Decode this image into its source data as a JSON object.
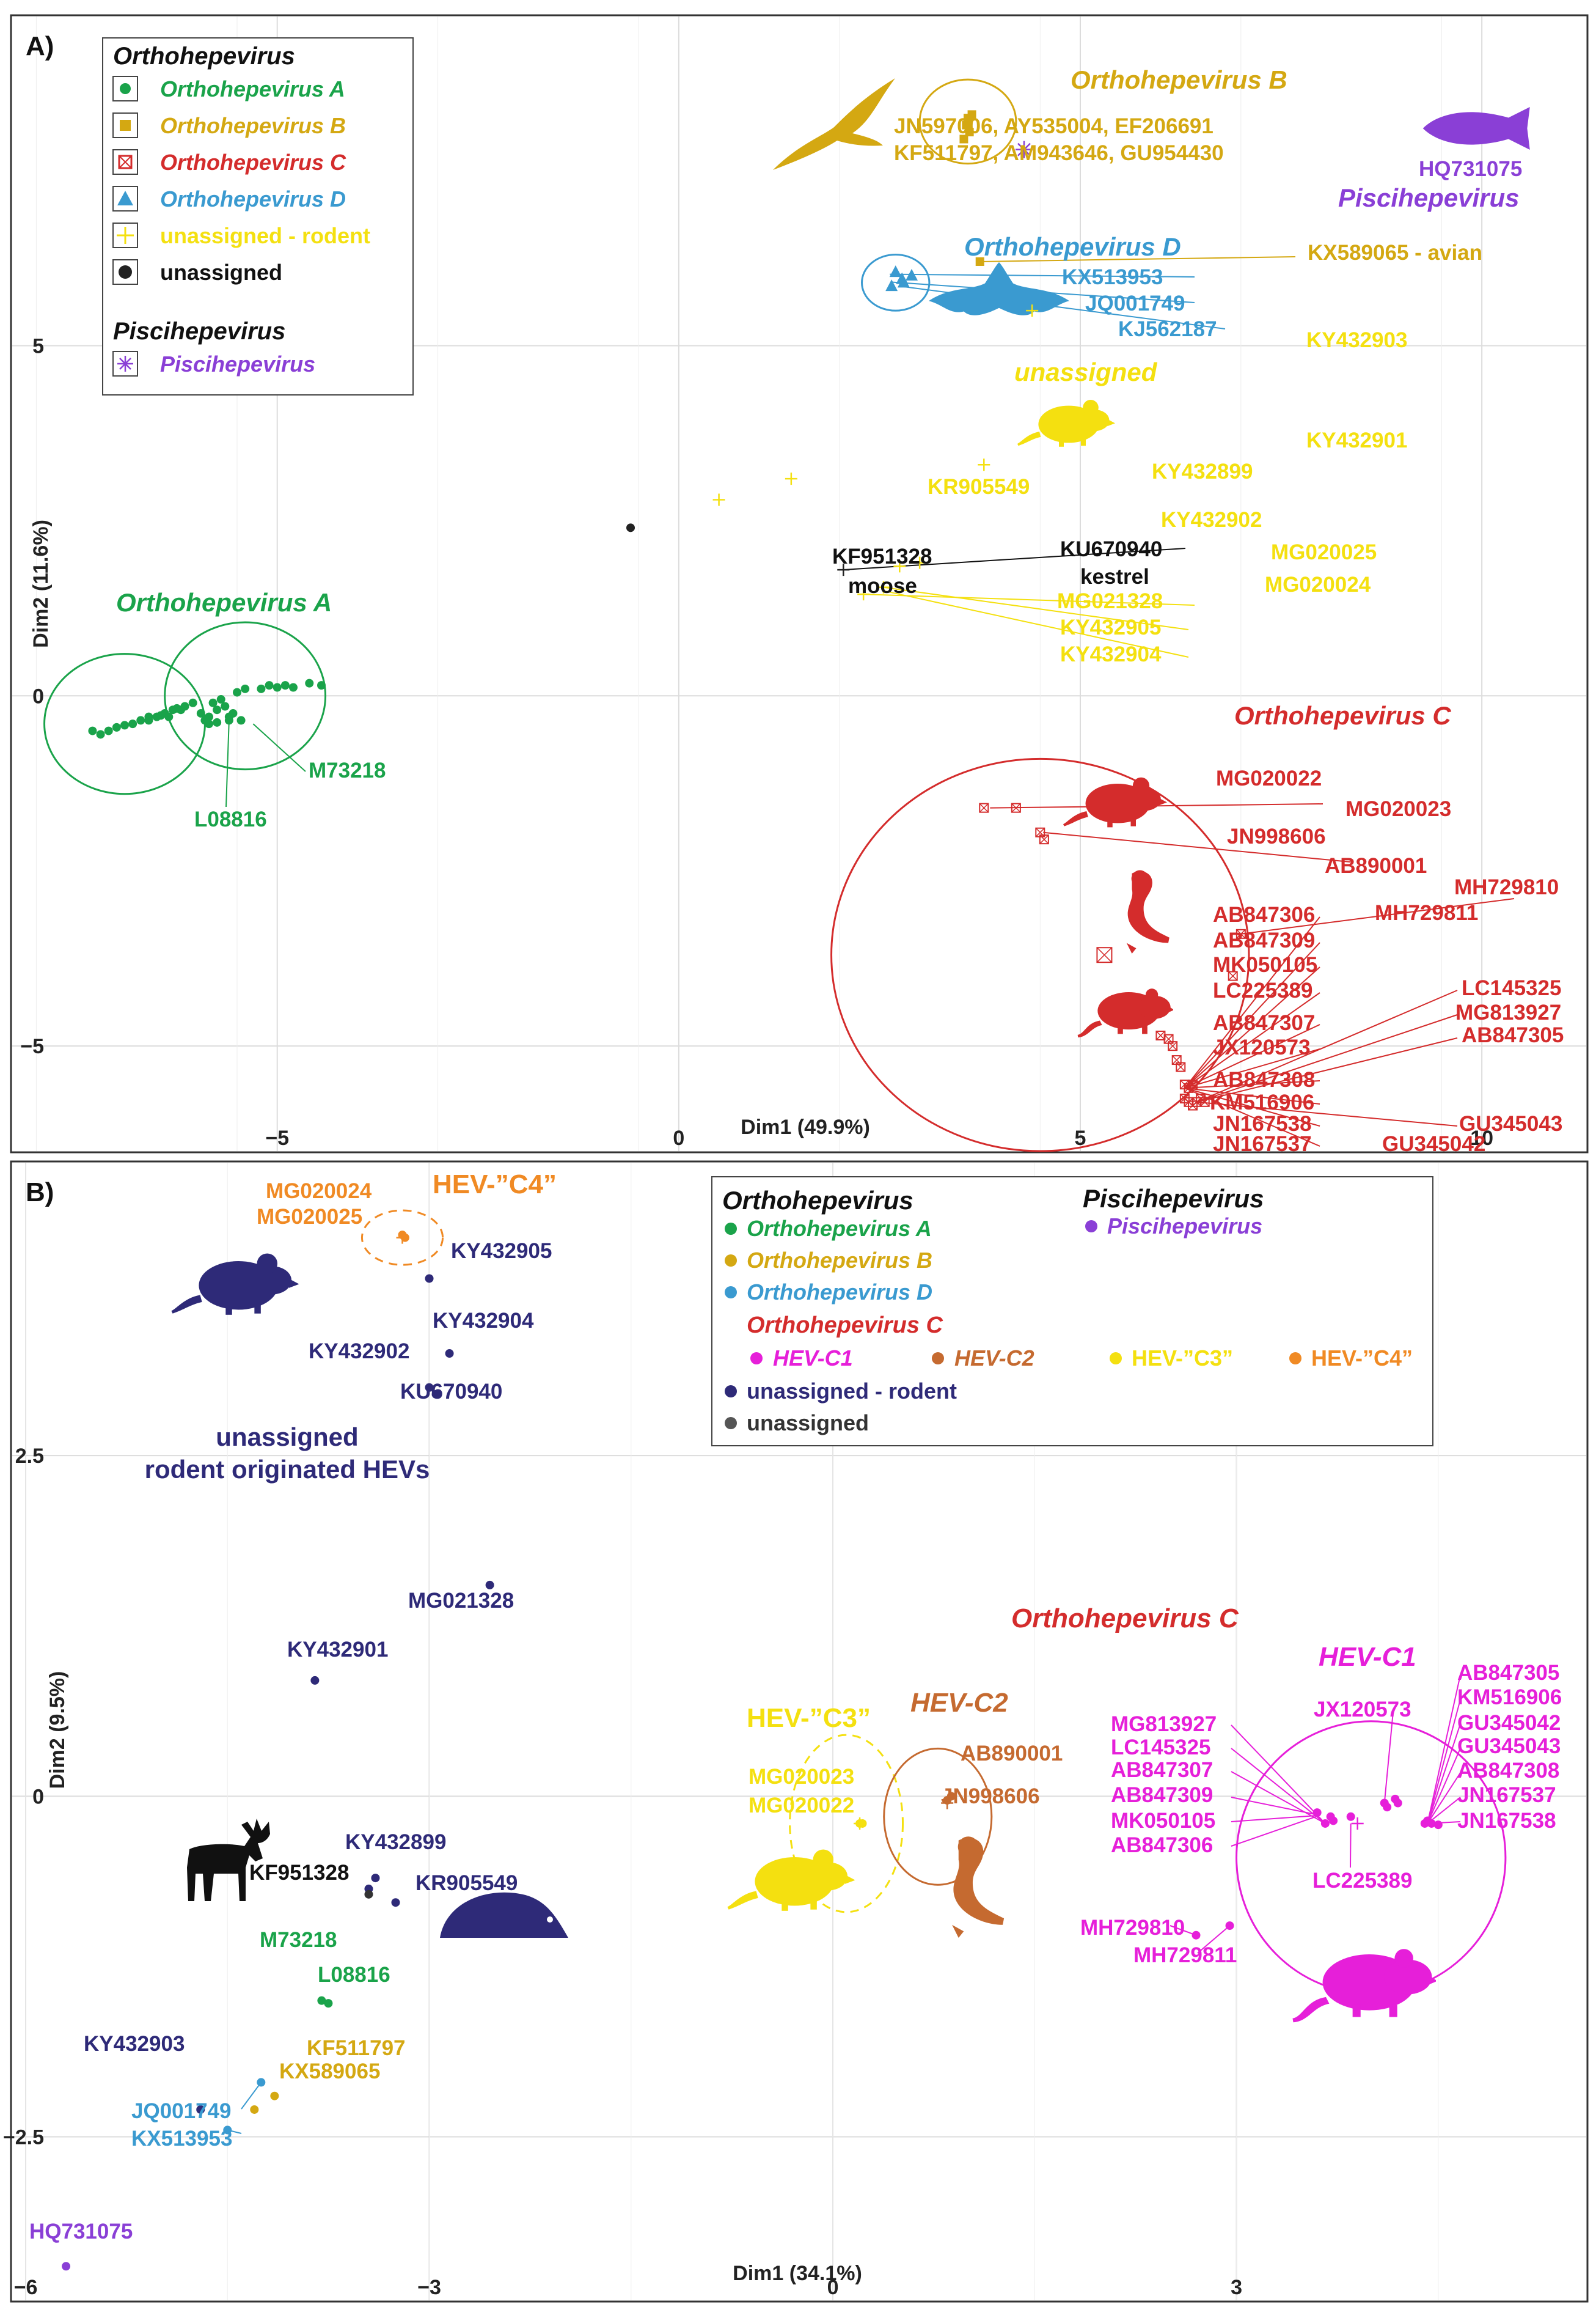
{
  "colors": {
    "A": "#1aa34a",
    "B": "#d4a812",
    "C": "#d42c2c",
    "D": "#3a9ad0",
    "rodent": "#f4e010",
    "unassigned": "#222222",
    "pisci": "#8a3fd6",
    "C1": "#e61fd9",
    "C2": "#c56a30",
    "C3": "#f4e010",
    "C4": "#f08a24",
    "navy": "#2e2a78",
    "grid": "#dcdcdc",
    "frame": "#333333"
  },
  "chart_data": [
    {
      "type": "scatter",
      "panel_label": "A)",
      "xlabel": "Dim1 (49.9%)",
      "ylabel": "Dim2 (11.6%)",
      "xlim": [
        -8.3,
        11.3
      ],
      "ylim": [
        -6.5,
        9.7
      ],
      "xticks": [
        -5,
        0,
        5,
        10
      ],
      "yticks": [
        -5,
        0,
        5
      ],
      "tick_labels_x": [
        "−5",
        "0",
        "5",
        "10"
      ],
      "tick_labels_y": [
        "−5",
        "0",
        "5"
      ],
      "legend": {
        "title": "Orthohepevirus",
        "items": [
          "Orthohepevirus A",
          "Orthohepevirus B",
          "Orthohepevirus C",
          "Orthohepevirus D",
          "unassigned - rodent",
          "unassigned"
        ],
        "title2": "Piscihepevirus",
        "items2": [
          "Piscihepevirus"
        ]
      },
      "group_labels": [
        "Orthohepevirus A",
        "Orthohepevirus B",
        "Orthohepevirus C",
        "Orthohepevirus D",
        "unassigned",
        "Piscihepevirus"
      ],
      "ellipses": [
        {
          "group": "A",
          "cx": -6.9,
          "cy": -0.4,
          "rx": 1.0,
          "ry": 1.0
        },
        {
          "group": "A",
          "cx": -5.4,
          "cy": 0.0,
          "rx": 1.0,
          "ry": 1.05
        },
        {
          "group": "B",
          "cx": 3.6,
          "cy": 8.2,
          "rx": 0.6,
          "ry": 0.6
        },
        {
          "group": "D",
          "cx": 2.7,
          "cy": 5.9,
          "rx": 0.42,
          "ry": 0.4
        },
        {
          "group": "C",
          "cx": 4.5,
          "cy": -3.7,
          "rx": 2.6,
          "ry": 2.8
        }
      ],
      "series": [
        {
          "name": "Orthohepevirus A",
          "marker": "dot",
          "points": [
            [
              -7.3,
              -0.5
            ],
            [
              -7.2,
              -0.55
            ],
            [
              -7.1,
              -0.5
            ],
            [
              -7.0,
              -0.45
            ],
            [
              -6.9,
              -0.42
            ],
            [
              -6.8,
              -0.4
            ],
            [
              -6.7,
              -0.35
            ],
            [
              -6.6,
              -0.3
            ],
            [
              -6.5,
              -0.3
            ],
            [
              -6.4,
              -0.25
            ],
            [
              -6.3,
              -0.2
            ],
            [
              -6.2,
              -0.2
            ],
            [
              -6.35,
              -0.3
            ],
            [
              -6.15,
              -0.15
            ],
            [
              -6.05,
              -0.1
            ],
            [
              -5.95,
              -0.25
            ],
            [
              -5.9,
              -0.35
            ],
            [
              -5.85,
              -0.3
            ],
            [
              -5.8,
              -0.1
            ],
            [
              -5.75,
              -0.2
            ],
            [
              -5.7,
              -0.05
            ],
            [
              -5.65,
              -0.15
            ],
            [
              -5.6,
              -0.3
            ],
            [
              -5.55,
              -0.25
            ],
            [
              -5.5,
              0.05
            ],
            [
              -5.6,
              -0.35
            ],
            [
              -5.45,
              -0.35
            ],
            [
              -5.4,
              0.1
            ],
            [
              -5.75,
              -0.38
            ],
            [
              -5.2,
              0.1
            ],
            [
              -5.1,
              0.15
            ],
            [
              -5.0,
              0.12
            ],
            [
              -4.9,
              0.15
            ],
            [
              -4.8,
              0.12
            ],
            [
              -4.6,
              0.18
            ],
            [
              -4.45,
              0.15
            ],
            [
              -6.6,
              -0.35
            ],
            [
              -6.45,
              -0.28
            ],
            [
              -6.25,
              -0.18
            ],
            [
              -5.85,
              -0.4
            ]
          ]
        },
        {
          "name": "Orthohepevirus B",
          "marker": "square",
          "points": [
            [
              3.62,
              8.05
            ],
            [
              3.58,
              8.15
            ],
            [
              3.65,
              8.3
            ],
            [
              3.55,
              7.95
            ],
            [
              3.6,
              8.25
            ]
          ]
        },
        {
          "name": "Orthohepevirus C",
          "marker": "boxx",
          "points": [
            [
              3.8,
              -1.6
            ],
            [
              4.2,
              -1.6
            ],
            [
              4.5,
              -1.95
            ],
            [
              4.55,
              -2.05
            ],
            [
              6.0,
              -4.85
            ],
            [
              6.1,
              -4.9
            ],
            [
              6.15,
              -5.0
            ],
            [
              6.2,
              -5.2
            ],
            [
              6.25,
              -5.3
            ],
            [
              6.3,
              -5.55
            ],
            [
              6.35,
              -5.6
            ],
            [
              6.4,
              -5.55
            ],
            [
              6.3,
              -5.75
            ],
            [
              6.35,
              -5.8
            ],
            [
              6.4,
              -5.85
            ],
            [
              6.45,
              -5.8
            ],
            [
              6.5,
              -5.75
            ],
            [
              6.55,
              -5.8
            ],
            [
              6.9,
              -4.0
            ],
            [
              7.0,
              -3.4
            ]
          ]
        },
        {
          "name": "Orthohepevirus C centroid",
          "marker": "boxx-large",
          "points": [
            [
              5.3,
              -3.7
            ]
          ]
        },
        {
          "name": "Orthohepevirus D",
          "marker": "triangle",
          "points": [
            [
              2.7,
              6.05
            ],
            [
              2.65,
              5.85
            ],
            [
              2.8,
              5.9
            ],
            [
              2.9,
              6.0
            ]
          ]
        },
        {
          "name": "Orthohepevirus D centroid",
          "marker": "triangle",
          "points": [
            [
              2.78,
              5.95
            ]
          ]
        },
        {
          "name": "unassigned - rodent",
          "marker": "plus",
          "points": [
            [
              4.4,
              5.5
            ],
            [
              3.8,
              3.3
            ],
            [
              1.4,
              3.1
            ],
            [
              0.5,
              2.8
            ],
            [
              2.75,
              1.85
            ],
            [
              3.0,
              1.9
            ],
            [
              2.3,
              1.45
            ],
            [
              2.55,
              1.55
            ]
          ]
        },
        {
          "name": "avian",
          "marker": "square",
          "points": [
            [
              3.75,
              6.2
            ]
          ]
        },
        {
          "name": "unassigned",
          "marker": "dot",
          "points": [
            [
              -0.6,
              2.4
            ]
          ]
        },
        {
          "name": "kestrel",
          "marker": "plus",
          "points": [
            [
              2.05,
              1.8
            ]
          ]
        },
        {
          "name": "Piscihepevirus",
          "marker": "star",
          "points": [
            [
              4.3,
              7.8
            ]
          ]
        }
      ],
      "labels": {
        "B_line1": "JN597006, AY535004, EF206691",
        "B_line2": "KF511797, AM943646, GU954430",
        "HQ731075": "HQ731075",
        "KX589065": "KX589065 - avian",
        "KX513953": "KX513953",
        "JQ001749": "JQ001749",
        "KJ562187": "KJ562187",
        "KY432903": "KY432903",
        "KY432901": "KY432901",
        "KY432899": "KY432899",
        "KR905549": "KR905549",
        "KY432902": "KY432902",
        "KU670940": "KU670940",
        "kestrel": "kestrel",
        "KF951328": "KF951328",
        "moose": "moose",
        "MG020025": "MG020025",
        "MG020024": "MG020024",
        "MG021328": "MG021328",
        "KY432905": "KY432905",
        "KY432904": "KY432904",
        "M73218": "M73218",
        "L08816": "L08816",
        "MG020022": "MG020022",
        "MG020023": "MG020023",
        "JN998606": "JN998606",
        "AB890001": "AB890001",
        "MH729810": "MH729810",
        "MH729811": "MH729811",
        "AB847306": "AB847306",
        "AB847309": "AB847309",
        "MK050105": "MK050105",
        "LC225389": "LC225389",
        "AB847307": "AB847307",
        "JX120573": "JX120573",
        "AB847308": "AB847308",
        "KM516906": "KM516906",
        "JN167538": "JN167538",
        "JN167537": "JN167537",
        "LC145325": "LC145325",
        "MG813927": "MG813927",
        "AB847305": "AB847305",
        "GU345043": "GU345043",
        "GU345042": "GU345042"
      }
    },
    {
      "type": "scatter",
      "panel_label": "B)",
      "xlabel": "Dim1 (34.1%)",
      "ylabel": "Dim2 (9.5%)",
      "xlim": [
        -6.1,
        5.6
      ],
      "ylim": [
        -3.7,
        4.65
      ],
      "xticks": [
        -6,
        -3,
        0,
        3
      ],
      "yticks": [
        -2.5,
        0,
        2.5
      ],
      "tick_labels_x": [
        "−6",
        "−3",
        "0",
        "3"
      ],
      "tick_labels_y": [
        "−2.5",
        "0",
        "2.5"
      ],
      "legend": {
        "title": "Orthohepevirus",
        "items": [
          "Orthohepevirus A",
          "Orthohepevirus B",
          "Orthohepevirus D",
          "Orthohepevirus C"
        ],
        "sub_items": [
          "HEV-C1",
          "HEV-C2",
          "HEV-”C3”",
          "HEV-”C4”"
        ],
        "items_tail": [
          "unassigned - rodent",
          "unassigned"
        ],
        "title2": "Piscihepevirus",
        "items2": [
          "Piscihepevirus"
        ]
      },
      "group_labels": {
        "C4": "HEV-”C4”",
        "C3": "HEV-”C3”",
        "C2": "HEV-C2",
        "C1": "HEV-C1",
        "C": "Orthohepevirus C",
        "unassigned_1": "unassigned",
        "unassigned_2": "rodent originated HEVs"
      },
      "ellipses": [
        {
          "group": "C4",
          "cx": -3.2,
          "cy": 4.1,
          "rx": 0.3,
          "ry": 0.2
        },
        {
          "group": "C3",
          "cx": 0.1,
          "cy": -0.2,
          "rx": 0.42,
          "ry": 0.65
        },
        {
          "group": "C2",
          "cx": 0.78,
          "cy": -0.15,
          "rx": 0.4,
          "ry": 0.5
        },
        {
          "group": "C1",
          "cx": 4.0,
          "cy": -0.45,
          "rx": 1.0,
          "ry": 1.0
        }
      ],
      "series": [
        {
          "name": "HEV-C1",
          "points": [
            [
              4.4,
              -0.2
            ],
            [
              4.42,
              -0.18
            ],
            [
              4.45,
              -0.2
            ],
            [
              4.5,
              -0.21
            ],
            [
              4.1,
              -0.05
            ],
            [
              4.12,
              -0.08
            ],
            [
              4.18,
              -0.02
            ],
            [
              4.2,
              -0.05
            ],
            [
              3.6,
              -0.12
            ],
            [
              3.66,
              -0.2
            ],
            [
              3.72,
              -0.18
            ],
            [
              3.7,
              -0.15
            ],
            [
              3.85,
              -0.15
            ],
            [
              2.7,
              -1.02
            ],
            [
              2.95,
              -0.95
            ]
          ]
        },
        {
          "name": "HEV-C2",
          "points": [
            [
              0.85,
              -0.03
            ],
            [
              0.88,
              0.0
            ]
          ]
        },
        {
          "name": "HEV-”C3”",
          "points": [
            [
              0.2,
              -0.2
            ],
            [
              0.22,
              -0.2
            ]
          ]
        },
        {
          "name": "HEV-”C4”",
          "points": [
            [
              -3.2,
              4.12
            ],
            [
              -3.18,
              4.1
            ]
          ]
        },
        {
          "name": "unassigned - rodent",
          "points": [
            [
              -3.0,
              3.8
            ],
            [
              -2.85,
              3.25
            ],
            [
              -3.0,
              3.0
            ],
            [
              -2.95,
              2.95
            ],
            [
              -2.55,
              1.55
            ],
            [
              -3.85,
              0.85
            ],
            [
              -3.4,
              -0.6
            ],
            [
              -3.25,
              -0.78
            ],
            [
              -4.7,
              -2.3
            ],
            [
              -3.45,
              -0.68
            ]
          ]
        },
        {
          "name": "unassigned",
          "points": [
            [
              -3.45,
              -0.72
            ]
          ]
        },
        {
          "name": "Orthohepevirus A",
          "points": [
            [
              -3.8,
              -1.5
            ],
            [
              -3.75,
              -1.52
            ]
          ]
        },
        {
          "name": "Orthohepevirus B",
          "points": [
            [
              -4.15,
              -2.2
            ],
            [
              -4.3,
              -2.3
            ]
          ]
        },
        {
          "name": "Orthohepevirus D",
          "points": [
            [
              -4.25,
              -2.1
            ],
            [
              -4.5,
              -2.45
            ]
          ]
        },
        {
          "name": "Piscihepevirus",
          "points": [
            [
              -5.7,
              -3.45
            ]
          ]
        }
      ],
      "labels": {
        "MG020024": "MG020024",
        "MG020025": "MG020025",
        "KY432905": "KY432905",
        "KY432904": "KY432904",
        "KY432902": "KY432902",
        "KU670940": "KU670940",
        "MG021328": "MG021328",
        "KY432901": "KY432901",
        "KY432899": "KY432899",
        "KF951328": "KF951328",
        "KR905549": "KR905549",
        "M73218": "M73218",
        "L08816": "L08816",
        "KY432903": "KY432903",
        "KF511797": "KF511797",
        "KX589065": "KX589065",
        "JQ001749": "JQ001749",
        "KX513953": "KX513953",
        "HQ731075": "HQ731075",
        "MG020023": "MG020023",
        "MG020022": "MG020022",
        "AB890001": "AB890001",
        "JN998606": "JN998606",
        "MG813927": "MG813927",
        "LC145325": "LC145325",
        "AB847307": "AB847307",
        "AB847309": "AB847309",
        "MK050105": "MK050105",
        "AB847306": "AB847306",
        "JX120573": "JX120573",
        "LC225389": "LC225389",
        "MH729810": "MH729810",
        "MH729811": "MH729811",
        "AB847305": "AB847305",
        "KM516906": "KM516906",
        "GU345042": "GU345042",
        "GU345043": "GU345043",
        "AB847308": "AB847308",
        "JN167537": "JN167537",
        "JN167538": "JN167538"
      }
    }
  ]
}
